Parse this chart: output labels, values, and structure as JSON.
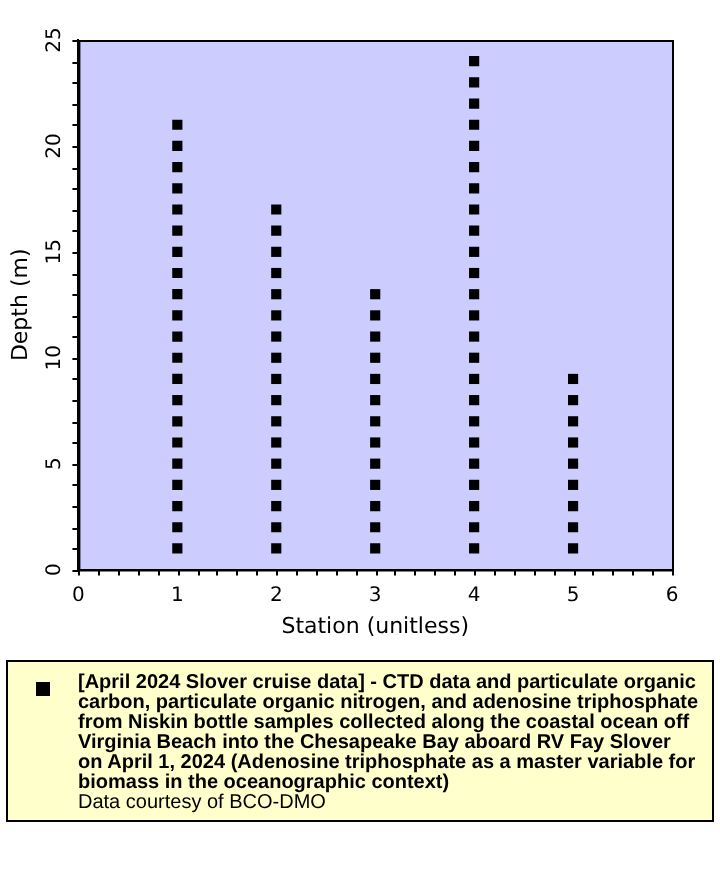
{
  "chart_data": {
    "type": "scatter",
    "xlabel": "Station (unitless)",
    "ylabel": "Depth (m)",
    "xlim": [
      0,
      6
    ],
    "xticks": [
      0,
      1,
      2,
      3,
      4,
      5,
      6
    ],
    "ylim": [
      0,
      25
    ],
    "yticks": [
      0,
      5,
      10,
      15,
      20,
      25
    ],
    "grid": false,
    "legend": "bottom",
    "marker": "square",
    "annotations": [
      "Data courtesy of BCO-DMO"
    ],
    "series": [
      {
        "name": "[April 2024 Slover cruise data] - CTD data and particulate organic carbon, particulate organic nitrogen, and adenosine triphosphate from Niskin bottle samples collected along the coastal ocean off Virginia Beach into the Chesapeake Bay aboard RV Fay Slover on April 1, 2024 (Adenosine triphosphate as a master variable for biomass in the oceanographic context)",
        "color": "#000000",
        "x": [
          1,
          1,
          1,
          1,
          1,
          1,
          1,
          1,
          1,
          1,
          1,
          1,
          1,
          1,
          1,
          1,
          1,
          1,
          1,
          1,
          1,
          2,
          2,
          2,
          2,
          2,
          2,
          2,
          2,
          2,
          2,
          2,
          2,
          2,
          2,
          2,
          2,
          2,
          3,
          3,
          3,
          3,
          3,
          3,
          3,
          3,
          3,
          3,
          3,
          3,
          3,
          4,
          4,
          4,
          4,
          4,
          4,
          4,
          4,
          4,
          4,
          4,
          4,
          4,
          4,
          4,
          4,
          4,
          4,
          4,
          4,
          4,
          4,
          4,
          4,
          5,
          5,
          5,
          5,
          5,
          5,
          5,
          5,
          5
        ],
        "values": [
          1,
          2,
          3,
          4,
          5,
          6,
          7,
          8,
          9,
          10,
          11,
          12,
          13,
          14,
          15,
          16,
          17,
          18,
          19,
          20,
          21,
          1,
          2,
          3,
          4,
          5,
          6,
          7,
          8,
          9,
          10,
          11,
          12,
          13,
          14,
          15,
          16,
          17,
          1,
          2,
          3,
          4,
          5,
          6,
          7,
          8,
          9,
          10,
          11,
          12,
          13,
          1,
          2,
          3,
          4,
          5,
          6,
          7,
          8,
          9,
          10,
          11,
          12,
          13,
          14,
          15,
          16,
          17,
          18,
          19,
          20,
          21,
          22,
          23,
          24,
          1,
          2,
          3,
          4,
          5,
          6,
          7,
          8,
          9
        ]
      }
    ]
  }
}
